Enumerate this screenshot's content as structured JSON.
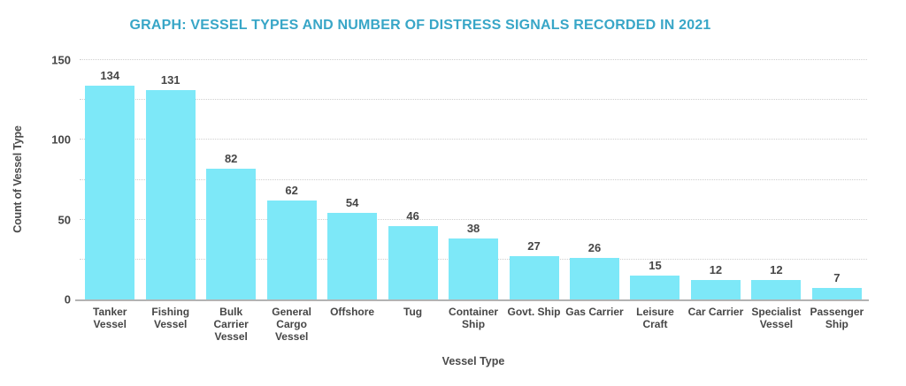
{
  "chart_data": {
    "type": "bar",
    "title": "GRAPH: VESSEL TYPES AND NUMBER OF DISTRESS SIGNALS RECORDED IN 2021",
    "xlabel": "Vessel Type",
    "ylabel": "Count of Vessel Type",
    "categories": [
      "Tanker Vessel",
      "Fishing Vessel",
      "Bulk Carrier Vessel",
      "General Cargo Vessel",
      "Offshore",
      "Tug",
      "Container Ship",
      "Govt. Ship",
      "Gas Carrier",
      "Leisure Craft",
      "Car Carrier",
      "Specialist Vessel",
      "Passenger Ship"
    ],
    "values": [
      134,
      131,
      82,
      62,
      54,
      46,
      38,
      27,
      26,
      15,
      12,
      12,
      7
    ],
    "ylim": [
      0,
      150
    ],
    "yticks": [
      0,
      50,
      100,
      150
    ],
    "grid_step": 25,
    "grid_style": "dotted horizontal",
    "legend": "none",
    "colors": {
      "bar": "#7de8f8",
      "title": "#38a6c7",
      "label_text": "#464646",
      "gridline": "#cfcfcf",
      "axis_line": "#b3b3b3",
      "background": "#ffffff"
    }
  }
}
